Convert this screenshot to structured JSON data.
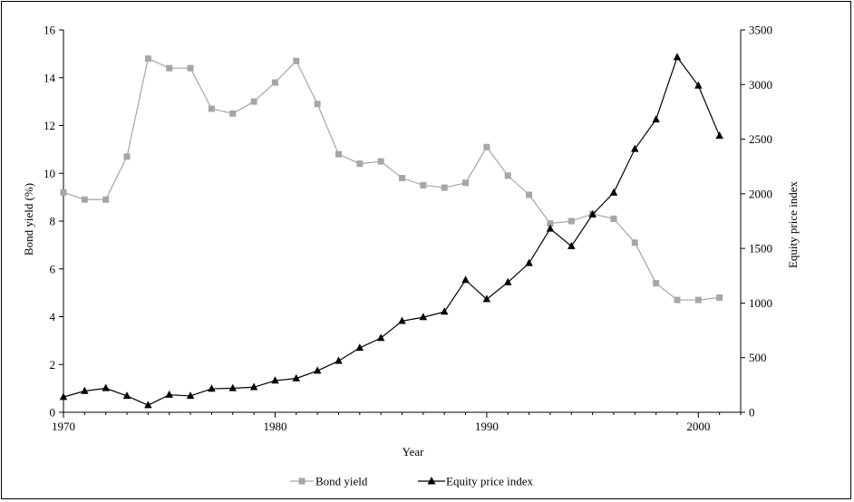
{
  "chart_data": {
    "type": "line",
    "title": "",
    "xlabel": "Year",
    "ylabel": "Bond yield (%)",
    "y2label": "Equity price index",
    "x": [
      1970,
      1971,
      1972,
      1973,
      1974,
      1975,
      1976,
      1977,
      1978,
      1979,
      1980,
      1981,
      1982,
      1983,
      1984,
      1985,
      1986,
      1987,
      1988,
      1989,
      1990,
      1991,
      1992,
      1993,
      1994,
      1995,
      1996,
      1997,
      1998,
      1999,
      2000,
      2001
    ],
    "xlim": [
      1970,
      2002
    ],
    "xticks": [
      "1970",
      "1980",
      "1990",
      "2000"
    ],
    "ylim": [
      0,
      16
    ],
    "yticks": [
      "0",
      "2",
      "4",
      "6",
      "8",
      "10",
      "12",
      "14",
      "16"
    ],
    "y2lim": [
      0,
      3500
    ],
    "y2ticks": [
      "0",
      "500",
      "1000",
      "1500",
      "2000",
      "2500",
      "3000",
      "3500"
    ],
    "series": [
      {
        "name": "Bond yield",
        "axis": "left",
        "marker": "square",
        "color": "#a6a6a6",
        "values": [
          9.2,
          8.9,
          8.9,
          10.7,
          14.8,
          14.4,
          14.4,
          12.7,
          12.5,
          13.0,
          13.8,
          14.7,
          12.9,
          10.8,
          10.4,
          10.5,
          9.8,
          9.5,
          9.4,
          9.6,
          11.1,
          9.9,
          9.1,
          7.9,
          8.0,
          8.3,
          8.1,
          7.1,
          5.4,
          4.7,
          4.7,
          4.8
        ]
      },
      {
        "name": "Equity price index",
        "axis": "right",
        "marker": "triangle",
        "color": "#000000",
        "values": [
          140,
          195,
          220,
          150,
          65,
          160,
          150,
          215,
          220,
          230,
          290,
          310,
          380,
          470,
          590,
          680,
          835,
          870,
          920,
          1210,
          1035,
          1190,
          1365,
          1680,
          1520,
          1810,
          2010,
          2410,
          2680,
          3250,
          2990,
          2530
        ]
      }
    ],
    "legend": {
      "placement": "bottom-center",
      "items": [
        "Bond yield",
        "Equity price index"
      ]
    },
    "grid": false
  }
}
